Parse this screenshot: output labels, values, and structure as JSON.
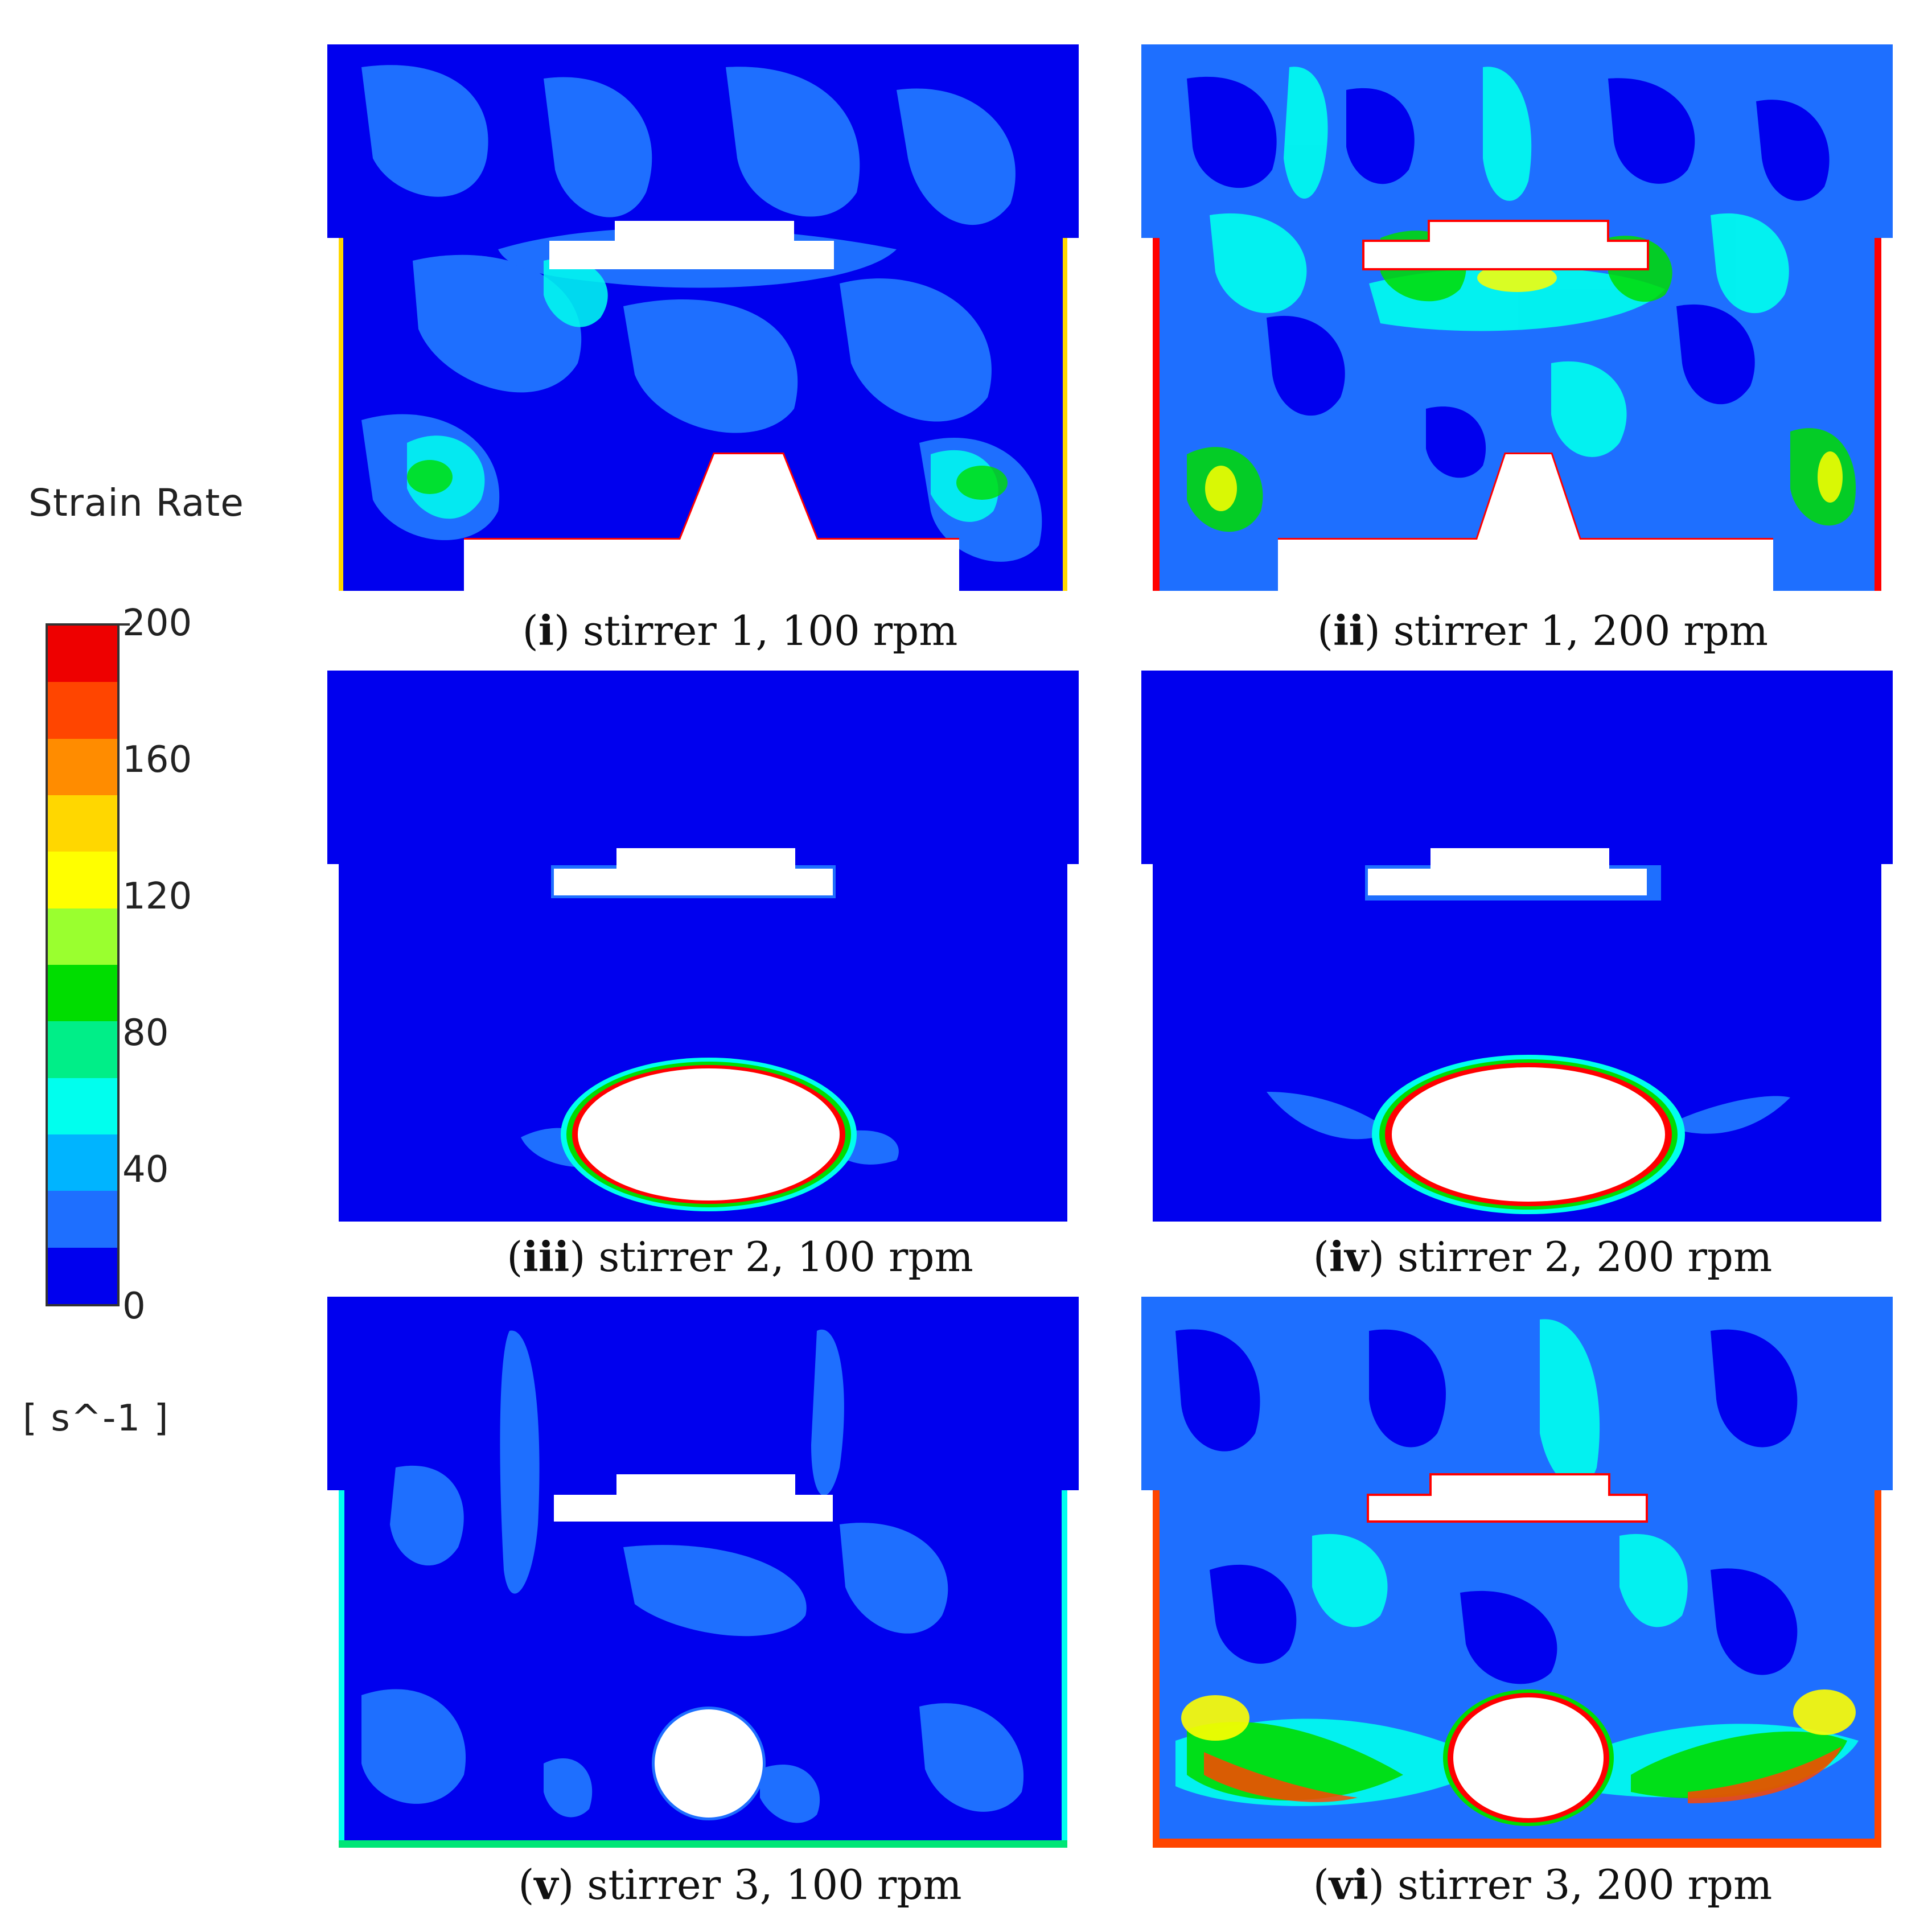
{
  "legend": {
    "title": "Strain Rate",
    "unit": "[ s^-1 ]",
    "ticks": [
      "200",
      "160",
      "120",
      "80",
      "40",
      "0"
    ],
    "range": [
      0,
      200
    ],
    "bands": [
      "#ff0000",
      "#ff4500",
      "#ff8c00",
      "#ffd700",
      "#ffff00",
      "#adff2f",
      "#00ff00",
      "#00e676",
      "#00ffe5",
      "#00c8ff",
      "#1e90ff",
      "#0000ff"
    ]
  },
  "panels": [
    {
      "id": "i",
      "label": "i",
      "caption": "stirrer 1, 100 rpm",
      "stirrer": 1,
      "rpm": 100
    },
    {
      "id": "ii",
      "label": "ii",
      "caption": "stirrer 1, 200 rpm",
      "stirrer": 1,
      "rpm": 200
    },
    {
      "id": "iii",
      "label": "iii",
      "caption": "stirrer 2, 100 rpm",
      "stirrer": 2,
      "rpm": 100
    },
    {
      "id": "iv",
      "label": "iv",
      "caption": "stirrer 2, 200 rpm",
      "stirrer": 2,
      "rpm": 200
    },
    {
      "id": "v",
      "label": "v",
      "caption": "stirrer 3, 100 rpm",
      "stirrer": 3,
      "rpm": 100
    },
    {
      "id": "vi",
      "label": "vi",
      "caption": "stirrer 3, 200 rpm",
      "stirrer": 3,
      "rpm": 200
    }
  ],
  "colors": {
    "background_field": "#0000ff",
    "low": "#1e6fff",
    "mid": "#00e5ff",
    "high": "#ff0000"
  }
}
